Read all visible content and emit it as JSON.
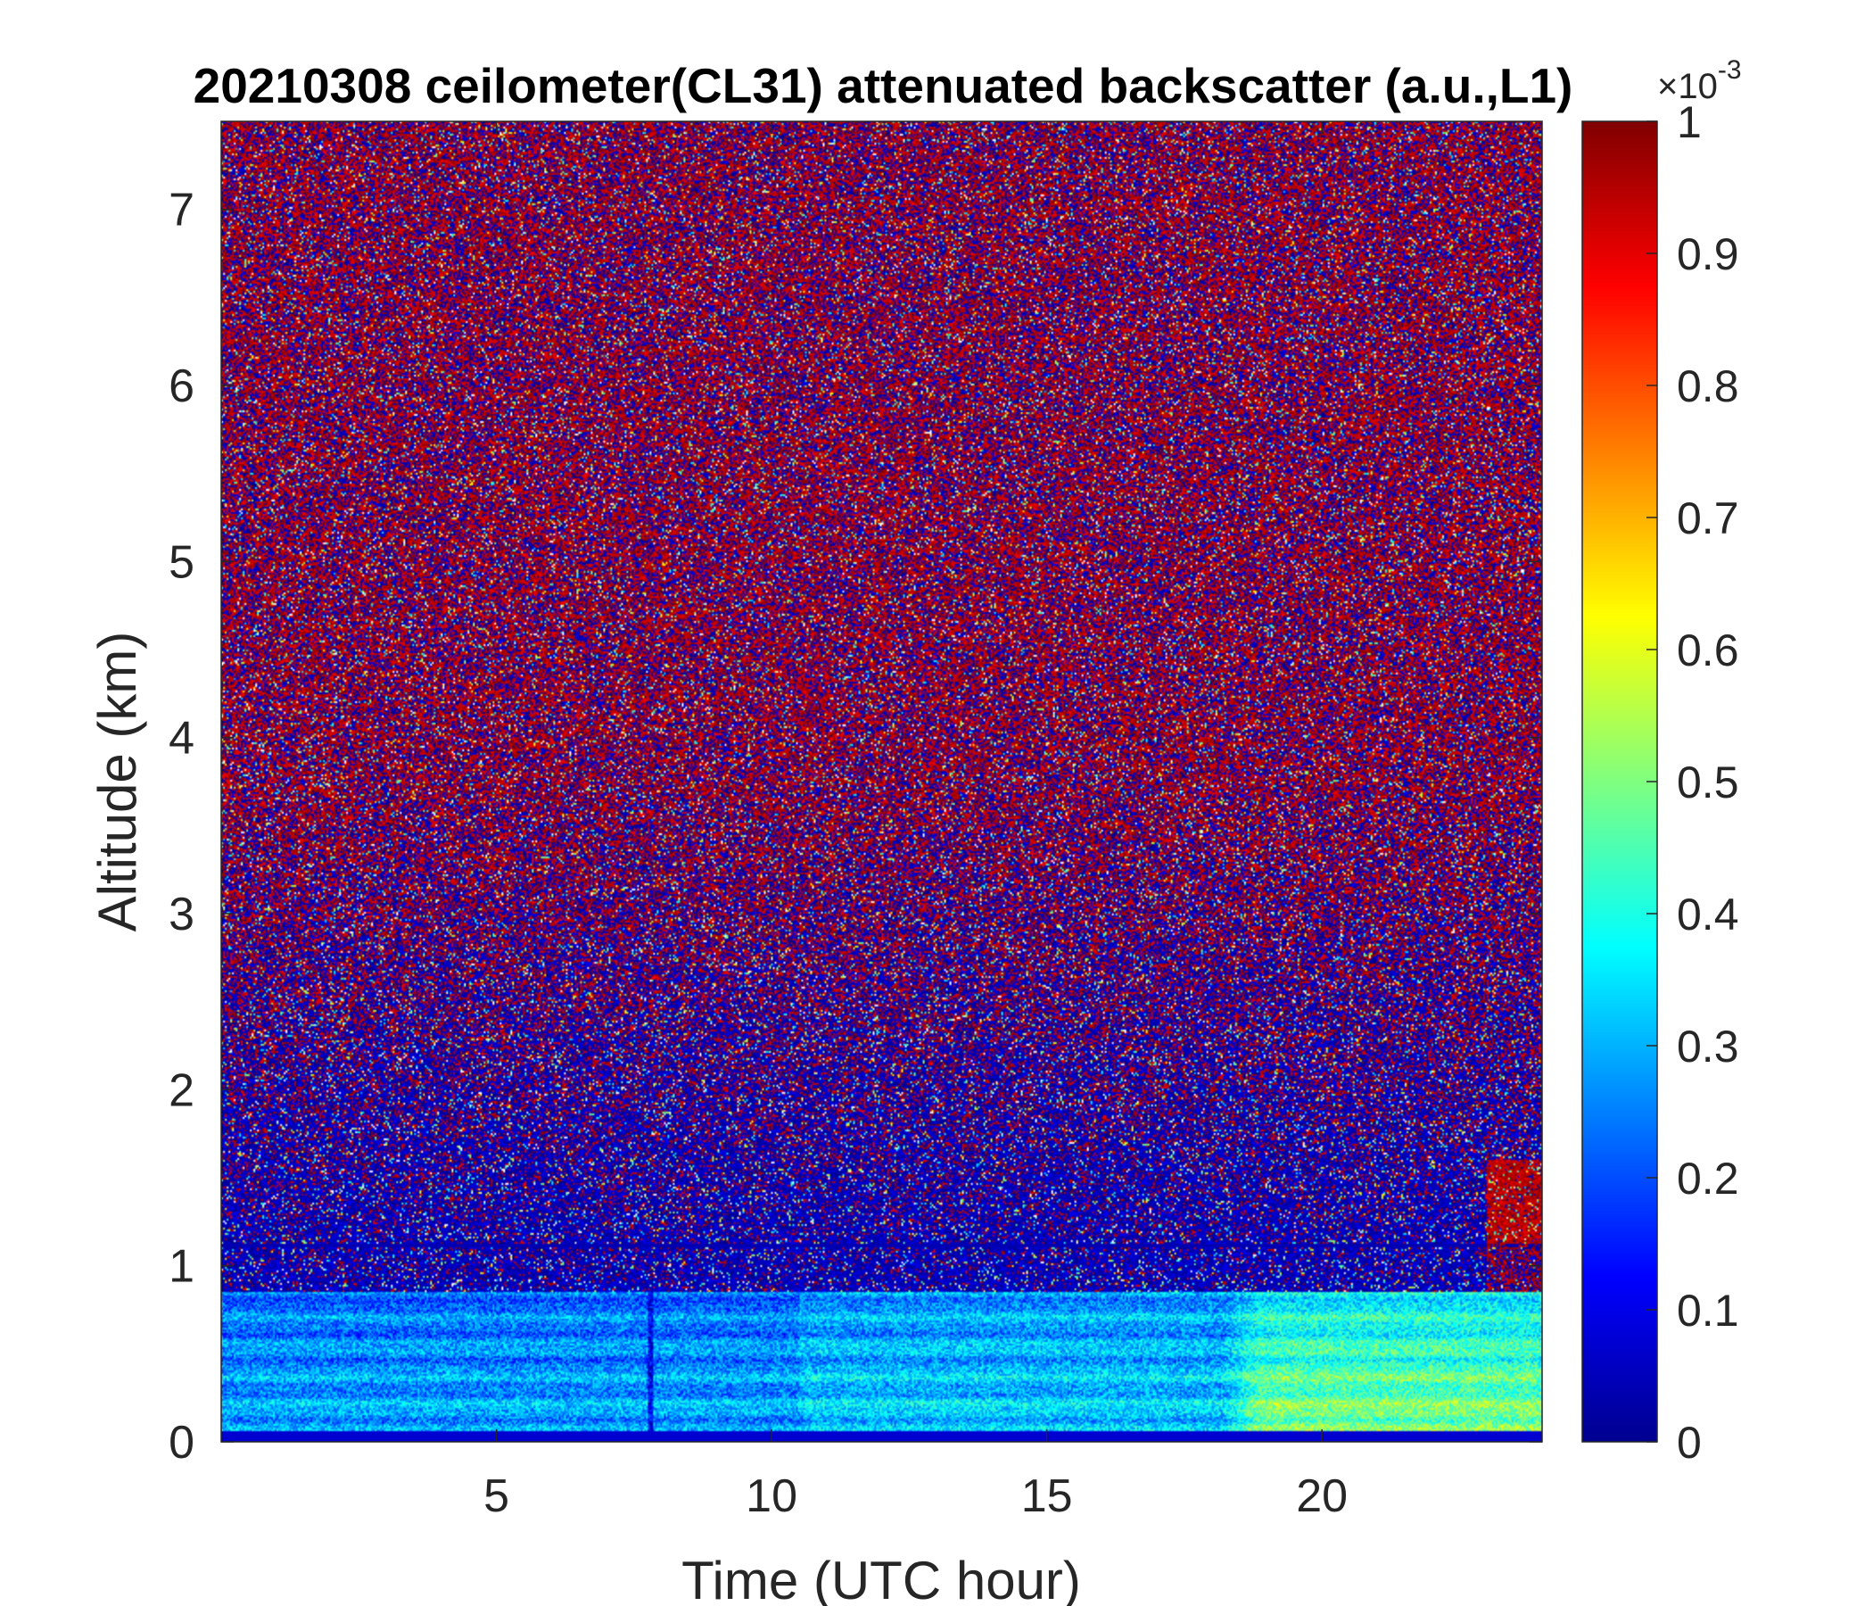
{
  "chart_data": {
    "type": "heatmap",
    "title": "20210308 ceilometer(CL31) attenuated backscatter (a.u.,L1)",
    "xlabel": "Time (UTC hour)",
    "ylabel": "Altitude (km)",
    "xlim": [
      0,
      24
    ],
    "ylim": [
      0,
      7.5
    ],
    "xticks": [
      5,
      10,
      15,
      20
    ],
    "yticks": [
      0,
      1,
      2,
      3,
      4,
      5,
      6,
      7
    ],
    "colorbar": {
      "colormap": "jet",
      "clim": [
        0,
        1
      ],
      "exponent_label": "×10",
      "exponent_value": "-3",
      "ticks": [
        0,
        0.1,
        0.2,
        0.3,
        0.4,
        0.5,
        0.6,
        0.7,
        0.8,
        0.9,
        1
      ],
      "tick_labels": [
        "0",
        "0.1",
        "0.2",
        "0.3",
        "0.4",
        "0.5",
        "0.6",
        "0.7",
        "0.8",
        "0.9",
        "1"
      ]
    },
    "features": [
      {
        "description": "boundary layer aerosol, values ~0.3-0.4",
        "time_range": [
          0,
          24
        ],
        "altitude_range": [
          0,
          0.8
        ]
      },
      {
        "description": "enhanced aerosol, values ~0.5-0.6",
        "time_range": [
          18.2,
          24
        ],
        "altitude_range": [
          0,
          0.9
        ]
      },
      {
        "description": "elevated layer, values ~0.9-1",
        "time_range": [
          23,
          24
        ],
        "altitude_range": [
          1.1,
          1.6
        ]
      }
    ],
    "grid": false
  }
}
